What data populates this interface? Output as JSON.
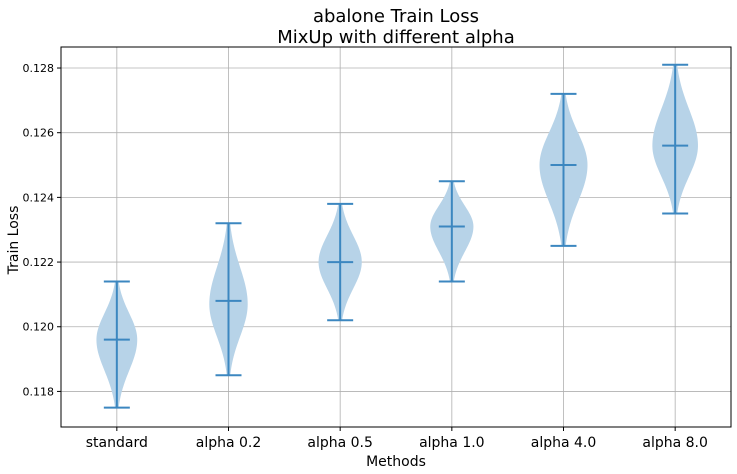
{
  "chart_data": {
    "type": "violin",
    "title_line1": "abalone Train Loss",
    "title_line2": "MixUp with different alpha",
    "xlabel": "Methods",
    "ylabel": "Train Loss",
    "categories": [
      "standard",
      "alpha 0.2",
      "alpha 0.5",
      "alpha 1.0",
      "alpha 4.0",
      "alpha 8.0"
    ],
    "ylim": [
      0.1169,
      0.12865
    ],
    "yticks": [
      0.118,
      0.12,
      0.122,
      0.124,
      0.126,
      0.128
    ],
    "ytick_labels": [
      "0.118",
      "0.120",
      "0.122",
      "0.124",
      "0.126",
      "0.128"
    ],
    "grid": true,
    "fill_color": "#b7d3e8",
    "line_color": "#3c87c0",
    "violins": [
      {
        "category": "standard",
        "min": 0.1175,
        "max": 0.1214,
        "mean": 0.1196,
        "mode": 0.1196,
        "halfwidth": 0.85
      },
      {
        "category": "alpha 0.2",
        "min": 0.1185,
        "max": 0.1232,
        "mean": 0.1208,
        "mode": 0.1207,
        "halfwidth": 0.8
      },
      {
        "category": "alpha 0.5",
        "min": 0.1202,
        "max": 0.1238,
        "mean": 0.122,
        "mode": 0.122,
        "halfwidth": 0.9
      },
      {
        "category": "alpha 1.0",
        "min": 0.1214,
        "max": 0.1245,
        "mean": 0.1231,
        "mode": 0.1231,
        "halfwidth": 0.9
      },
      {
        "category": "alpha 4.0",
        "min": 0.1225,
        "max": 0.1272,
        "mean": 0.125,
        "mode": 0.125,
        "halfwidth": 1.0
      },
      {
        "category": "alpha 8.0",
        "min": 0.1235,
        "max": 0.1281,
        "mean": 0.1256,
        "mode": 0.1256,
        "halfwidth": 0.95
      }
    ]
  }
}
